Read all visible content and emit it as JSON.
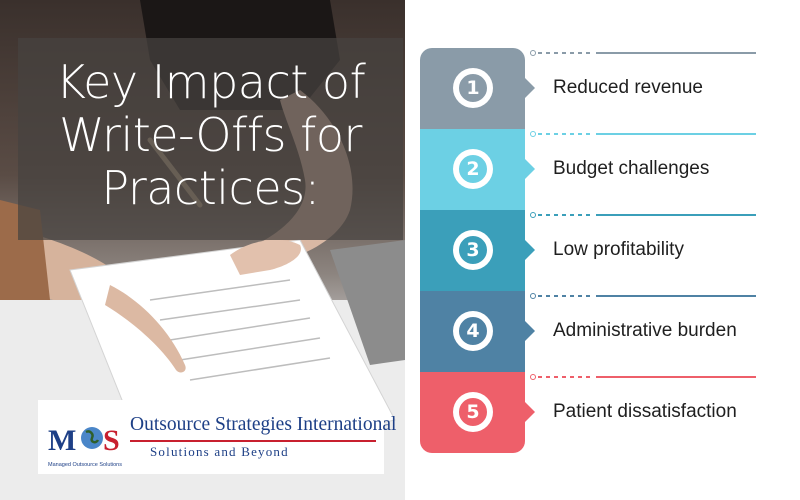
{
  "title": {
    "line1": "Key Impact of",
    "line2": "Write-Offs for",
    "line3": "Practices:"
  },
  "logo": {
    "mark": "MOS",
    "name": "Outsource Strategies International",
    "tagline": "Solutions and Beyond",
    "subtitle": "Managed Outsource Solutions",
    "colors": {
      "blue": "#1d3f86",
      "red": "#c8202f"
    }
  },
  "steps": [
    {
      "number": "1",
      "label": "Reduced revenue",
      "color": "#8a9ba8"
    },
    {
      "number": "2",
      "label": "Budget challenges",
      "color": "#6cd0e4"
    },
    {
      "number": "3",
      "label": "Low profitability",
      "color": "#3b9fba"
    },
    {
      "number": "4",
      "label": "Administrative burden",
      "color": "#4f82a4"
    },
    {
      "number": "5",
      "label": "Patient dissatisfaction",
      "color": "#ee5f6a"
    }
  ]
}
